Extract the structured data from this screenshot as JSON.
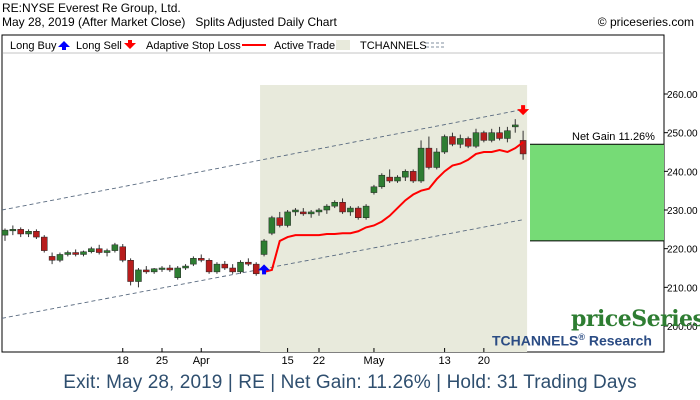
{
  "header": {
    "title": "RE:NYSE Everest Re Group, Ltd.",
    "subtitle": "May 28, 2019 (After Market Close)   Splits Adjusted Daily Chart",
    "copyright": "© priceseries.com"
  },
  "legend": {
    "long_buy": "Long Buy",
    "long_sell": "Long Sell",
    "adaptive_stop": "Adaptive Stop Loss",
    "active_trade": "Active Trade",
    "tchannels": "TCHANNELS"
  },
  "colors": {
    "up": "#2e7d32",
    "down": "#b71c1c",
    "stop": "#ff0000",
    "trade_bg": "#e8eadc",
    "gain_box": "#76db76",
    "channel": "#5a6b80",
    "buy_arrow": "#0000ff",
    "sell_arrow": "#ff0000"
  },
  "annotations": {
    "net_gain": "Net Gain 11.26%"
  },
  "brand": {
    "name": "priceSeries",
    "research_prefix": "TCHANNELS",
    "research_mark": "®",
    "research_suffix": " Research"
  },
  "footer": {
    "text": "Exit: May 28, 2019 | RE | Net Gain: 11.26% | Hold: 31 Trading Days"
  },
  "chart_data": {
    "type": "candlestick",
    "ylim": [
      192,
      268
    ],
    "y_ticks": [
      "200.00",
      "210.00",
      "220.00",
      "230.00",
      "240.00",
      "250.00",
      "260.00"
    ],
    "x_tick_labels": [
      {
        "label": "18",
        "bar": 15
      },
      {
        "label": "25",
        "bar": 20
      },
      {
        "label": "Apr",
        "bar": 25
      },
      {
        "label": "15",
        "bar": 36
      },
      {
        "label": "22",
        "bar": 40
      },
      {
        "label": "May",
        "bar": 47
      },
      {
        "label": "13",
        "bar": 56
      },
      {
        "label": "20",
        "bar": 61
      }
    ],
    "candles": [
      [
        223.5,
        225.2,
        222.0,
        224.8
      ],
      [
        224.8,
        226.0,
        223.5,
        225.0
      ],
      [
        225.0,
        225.5,
        223.0,
        223.8
      ],
      [
        223.8,
        225.0,
        223.0,
        224.5
      ],
      [
        224.5,
        225.0,
        222.5,
        223.0
      ],
      [
        223.0,
        223.5,
        219.0,
        219.5
      ],
      [
        218.0,
        219.0,
        216.0,
        217.0
      ],
      [
        217.0,
        219.0,
        216.5,
        218.5
      ],
      [
        218.5,
        219.5,
        218.0,
        219.0
      ],
      [
        219.0,
        219.8,
        218.0,
        218.5
      ],
      [
        218.5,
        219.5,
        218.0,
        219.2
      ],
      [
        219.2,
        220.5,
        218.8,
        220.0
      ],
      [
        220.0,
        221.0,
        218.5,
        219.0
      ],
      [
        219.0,
        220.0,
        218.0,
        219.5
      ],
      [
        219.5,
        221.5,
        219.0,
        221.0
      ],
      [
        220.5,
        221.2,
        216.5,
        217.0
      ],
      [
        217.0,
        217.5,
        210.5,
        211.5
      ],
      [
        211.5,
        215.0,
        210.0,
        214.5
      ],
      [
        214.5,
        215.5,
        213.5,
        214.0
      ],
      [
        214.0,
        215.0,
        213.5,
        214.8
      ],
      [
        214.8,
        215.5,
        214.0,
        215.0
      ],
      [
        215.0,
        215.8,
        214.0,
        214.5
      ],
      [
        212.5,
        215.5,
        212.0,
        215.0
      ],
      [
        215.0,
        216.0,
        214.5,
        215.5
      ],
      [
        216.0,
        218.0,
        215.5,
        217.5
      ],
      [
        217.5,
        218.5,
        216.5,
        217.0
      ],
      [
        217.0,
        217.5,
        213.5,
        214.0
      ],
      [
        214.0,
        216.5,
        213.5,
        216.0
      ],
      [
        216.0,
        216.8,
        214.5,
        215.0
      ],
      [
        215.0,
        216.0,
        213.5,
        214.0
      ],
      [
        214.0,
        217.0,
        213.5,
        216.5
      ],
      [
        216.5,
        217.5,
        215.5,
        216.0
      ],
      [
        216.0,
        216.5,
        213.0,
        213.5
      ],
      [
        218.5,
        222.5,
        218.0,
        222.0
      ],
      [
        224.0,
        228.5,
        223.5,
        228.0
      ],
      [
        228.0,
        229.5,
        225.5,
        226.0
      ],
      [
        226.0,
        230.0,
        225.5,
        229.5
      ],
      [
        229.5,
        230.5,
        228.5,
        230.0
      ],
      [
        229.5,
        230.5,
        228.5,
        229.0
      ],
      [
        229.0,
        230.0,
        228.0,
        229.5
      ],
      [
        229.5,
        230.5,
        228.5,
        230.0
      ],
      [
        230.0,
        231.5,
        229.0,
        231.0
      ],
      [
        231.0,
        232.5,
        230.5,
        232.0
      ],
      [
        232.0,
        233.0,
        229.0,
        229.5
      ],
      [
        229.5,
        231.0,
        228.5,
        230.5
      ],
      [
        230.5,
        231.0,
        227.5,
        228.0
      ],
      [
        228.0,
        231.5,
        227.5,
        231.0
      ],
      [
        234.5,
        236.5,
        234.0,
        236.0
      ],
      [
        236.0,
        239.5,
        235.5,
        239.0
      ],
      [
        238.5,
        240.5,
        237.0,
        237.5
      ],
      [
        237.5,
        239.0,
        237.0,
        238.5
      ],
      [
        238.5,
        240.5,
        237.5,
        240.0
      ],
      [
        240.0,
        240.5,
        237.0,
        237.5
      ],
      [
        237.5,
        248.0,
        237.0,
        246.0
      ],
      [
        246.0,
        249.0,
        240.5,
        241.0
      ],
      [
        241.0,
        246.0,
        240.5,
        245.0
      ],
      [
        245.0,
        249.5,
        244.5,
        249.0
      ],
      [
        249.0,
        250.0,
        246.5,
        247.0
      ],
      [
        247.0,
        249.5,
        246.0,
        248.5
      ],
      [
        248.5,
        249.0,
        246.0,
        246.5
      ],
      [
        246.5,
        251.0,
        246.0,
        250.0
      ],
      [
        250.0,
        250.5,
        247.5,
        248.0
      ],
      [
        248.0,
        251.0,
        247.5,
        250.0
      ],
      [
        250.0,
        251.5,
        248.0,
        248.5
      ],
      [
        248.5,
        251.5,
        247.5,
        250.5
      ],
      [
        251.5,
        253.5,
        250.0,
        252.0
      ],
      [
        248.0,
        250.5,
        243.0,
        244.5
      ]
    ],
    "trade_start_bar": 33,
    "trade_end_bar": 66,
    "stop_loss": [
      [
        33,
        214.0
      ],
      [
        34,
        214.5
      ],
      [
        35,
        222.0
      ],
      [
        36,
        223.0
      ],
      [
        37,
        223.5
      ],
      [
        38,
        223.5
      ],
      [
        39,
        223.5
      ],
      [
        40,
        223.5
      ],
      [
        41,
        223.8
      ],
      [
        42,
        223.8
      ],
      [
        43,
        224.0
      ],
      [
        44,
        224.0
      ],
      [
        45,
        224.5
      ],
      [
        46,
        225.5
      ],
      [
        47,
        226.0
      ],
      [
        48,
        227.0
      ],
      [
        49,
        228.5
      ],
      [
        50,
        230.5
      ],
      [
        51,
        232.5
      ],
      [
        52,
        234.0
      ],
      [
        53,
        235.0
      ],
      [
        54,
        235.5
      ],
      [
        55,
        238.0
      ],
      [
        56,
        240.0
      ],
      [
        57,
        241.5
      ],
      [
        58,
        242.0
      ],
      [
        59,
        243.0
      ],
      [
        60,
        244.5
      ],
      [
        61,
        245.0
      ],
      [
        62,
        245.0
      ],
      [
        63,
        245.5
      ],
      [
        64,
        245.0
      ],
      [
        65,
        246.0
      ],
      [
        66,
        247.5
      ]
    ],
    "channel_upper": [
      [
        0,
        230.0
      ],
      [
        66,
        256.0
      ]
    ],
    "channel_lower": [
      [
        0,
        202.0
      ],
      [
        66,
        227.5
      ]
    ],
    "buy_bar": 33,
    "sell_bar": 66,
    "net_gain_pct": 11.26,
    "gain_box_range": [
      222.0,
      247.0
    ]
  }
}
